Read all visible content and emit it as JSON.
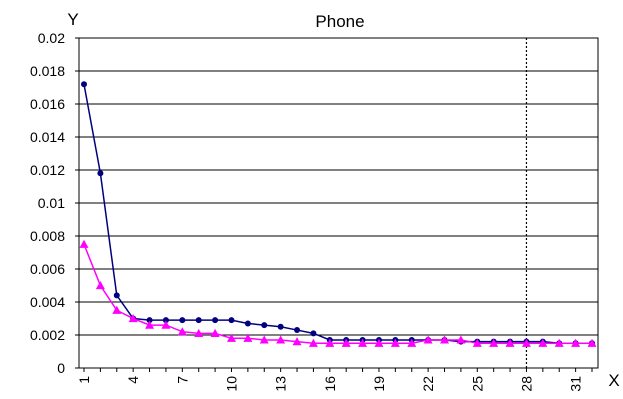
{
  "chart_data": {
    "type": "line",
    "title": "Phone",
    "xlabel": "X",
    "ylabel": "Y",
    "x": [
      1,
      2,
      3,
      4,
      5,
      6,
      7,
      8,
      9,
      10,
      11,
      12,
      13,
      14,
      15,
      16,
      17,
      18,
      19,
      20,
      21,
      22,
      23,
      24,
      25,
      26,
      27,
      28,
      29,
      30,
      31,
      32
    ],
    "xticks": [
      1,
      4,
      7,
      10,
      13,
      16,
      19,
      22,
      25,
      28,
      31
    ],
    "ylim": [
      0,
      0.02
    ],
    "yticks": [
      "0",
      "0.002",
      "0.004",
      "0.006",
      "0.008",
      "0.01",
      "0.012",
      "0.014",
      "0.016",
      "0.018",
      "0.02"
    ],
    "grid": "horizontal",
    "vline_x": 28,
    "series": [
      {
        "marker": "circle",
        "color": "#000080",
        "values": [
          0.0172,
          0.0118,
          0.0044,
          0.003,
          0.0029,
          0.0029,
          0.0029,
          0.0029,
          0.0029,
          0.0029,
          0.0027,
          0.0026,
          0.0025,
          0.0023,
          0.0021,
          0.0017,
          0.0017,
          0.0017,
          0.0017,
          0.0017,
          0.0017,
          0.0017,
          0.0017,
          0.0016,
          0.0016,
          0.0016,
          0.0016,
          0.0016,
          0.0016,
          0.0015,
          0.0015,
          0.0015
        ]
      },
      {
        "marker": "triangle",
        "color": "#ff00ff",
        "values": [
          0.0075,
          0.005,
          0.0035,
          0.003,
          0.0026,
          0.0026,
          0.0022,
          0.0021,
          0.0021,
          0.0018,
          0.0018,
          0.0017,
          0.0017,
          0.0016,
          0.0015,
          0.0015,
          0.0015,
          0.0015,
          0.0015,
          0.0015,
          0.0015,
          0.0017,
          0.0017,
          0.0017,
          0.0015,
          0.0015,
          0.0015,
          0.0015,
          0.0015,
          0.0015,
          0.0015,
          0.0015
        ]
      }
    ]
  }
}
